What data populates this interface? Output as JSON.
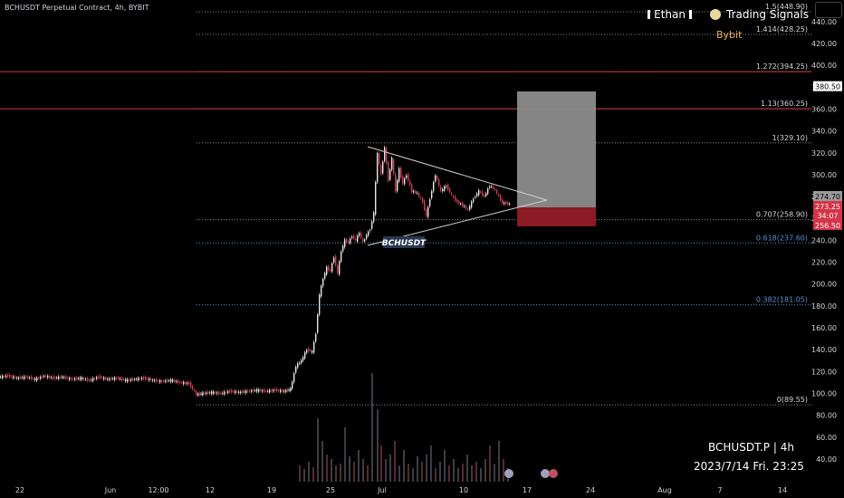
{
  "header": {
    "title": "BCHUSDT Perpetual Contract, 4h, BYBIT"
  },
  "branding": {
    "name": "Ethan",
    "signals": "Trading Signals",
    "exchange": "Bybit"
  },
  "footer": {
    "symbol": "BCHUSDT.P | 4h",
    "datetime": "2023/7/14 Fri. 23:25"
  },
  "pattern_label": "BCHUSDT",
  "colors": {
    "background": "#000000",
    "fib": "#8a8a8a",
    "fib_blue": "#5b8fd8",
    "ext_red": "#d23b3b",
    "target_box": "#8c8c8c",
    "stop_box": "#8b1a24",
    "price_tag": "#d63447"
  },
  "chart_data": {
    "type": "candlestick",
    "yticks": [
      40,
      60,
      80,
      100,
      120,
      140,
      160,
      180,
      200,
      220,
      240,
      260,
      280,
      300,
      320,
      340,
      360,
      380,
      400,
      420,
      440
    ],
    "ytick_labels": [
      "40.00",
      "60.00",
      "80.00",
      "100.00",
      "120.00",
      "140.00",
      "160.00",
      "180.00",
      "200.00",
      "220.00",
      "240.00",
      "260.00",
      "280.00",
      "300.00",
      "320.00",
      "340.00",
      "360.00",
      "380.00",
      "400.00",
      "420.00",
      "440.00"
    ],
    "xtick_labels": [
      "22",
      "Jun",
      "12:00",
      "12",
      "19",
      "25",
      "Jul",
      "10",
      "17",
      "24",
      "Aug",
      "7",
      "14"
    ],
    "fib_levels": [
      {
        "label": "0(89.55)",
        "value": 89.55
      },
      {
        "label": "0.382(181.05)",
        "value": 181.05
      },
      {
        "label": "0.618(237.60)",
        "value": 237.6
      },
      {
        "label": "0.707(258.90)",
        "value": 258.9
      },
      {
        "label": "1(329.10)",
        "value": 329.1
      },
      {
        "label": "1.13(360.25)",
        "value": 360.25
      },
      {
        "label": "1.272(394.25)",
        "value": 394.25
      },
      {
        "label": "1.414(428.25)",
        "value": 428.25
      },
      {
        "label": "1.5(448.90)",
        "value": 448.9
      }
    ],
    "price_tags": [
      {
        "label": "380.50",
        "value": 380.5
      },
      {
        "label": "274.70",
        "value": 274.7
      },
      {
        "label": "273.25",
        "value": 273.25
      },
      {
        "label": "34:07"
      },
      {
        "label": "256.50",
        "value": 256.5
      }
    ],
    "ohlc_path": [
      [
        0,
        115
      ],
      [
        10,
        116
      ],
      [
        20,
        114
      ],
      [
        30,
        115
      ],
      [
        40,
        113
      ],
      [
        50,
        116
      ],
      [
        60,
        114
      ],
      [
        70,
        115
      ],
      [
        80,
        113
      ],
      [
        90,
        114
      ],
      [
        100,
        112
      ],
      [
        110,
        115
      ],
      [
        120,
        113
      ],
      [
        130,
        114
      ],
      [
        140,
        112
      ],
      [
        150,
        113
      ],
      [
        160,
        114
      ],
      [
        170,
        112
      ],
      [
        180,
        111
      ],
      [
        190,
        112
      ],
      [
        200,
        110
      ],
      [
        210,
        109
      ],
      [
        218,
        99
      ],
      [
        225,
        100
      ],
      [
        235,
        101
      ],
      [
        245,
        100
      ],
      [
        255,
        102
      ],
      [
        265,
        101
      ],
      [
        275,
        102
      ],
      [
        285,
        103
      ],
      [
        295,
        102
      ],
      [
        305,
        103
      ],
      [
        315,
        102
      ],
      [
        322,
        104
      ],
      [
        328,
        125
      ],
      [
        334,
        130
      ],
      [
        340,
        140
      ],
      [
        346,
        138
      ],
      [
        350,
        155
      ],
      [
        354,
        190
      ],
      [
        358,
        205
      ],
      [
        362,
        215
      ],
      [
        366,
        212
      ],
      [
        370,
        225
      ],
      [
        374,
        210
      ],
      [
        378,
        230
      ],
      [
        382,
        240
      ],
      [
        386,
        238
      ],
      [
        390,
        244
      ],
      [
        394,
        240
      ],
      [
        398,
        247
      ],
      [
        402,
        238
      ],
      [
        406,
        245
      ],
      [
        410,
        250
      ],
      [
        414,
        265
      ],
      [
        418,
        320
      ],
      [
        422,
        300
      ],
      [
        426,
        325
      ],
      [
        430,
        295
      ],
      [
        434,
        315
      ],
      [
        438,
        285
      ],
      [
        442,
        305
      ],
      [
        446,
        292
      ],
      [
        450,
        300
      ],
      [
        456,
        285
      ],
      [
        462,
        283
      ],
      [
        468,
        275
      ],
      [
        472,
        262
      ],
      [
        476,
        278
      ],
      [
        482,
        300
      ],
      [
        488,
        285
      ],
      [
        494,
        290
      ],
      [
        500,
        281
      ],
      [
        506,
        275
      ],
      [
        512,
        272
      ],
      [
        518,
        268
      ],
      [
        524,
        278
      ],
      [
        530,
        285
      ],
      [
        536,
        280
      ],
      [
        542,
        290
      ],
      [
        548,
        286
      ],
      [
        552,
        280
      ],
      [
        556,
        274
      ],
      [
        560,
        274
      ],
      [
        564,
        273
      ]
    ],
    "volume_x": [
      330,
      335,
      340,
      345,
      350,
      355,
      360,
      365,
      370,
      375,
      380,
      385,
      390,
      395,
      400,
      405,
      410,
      416,
      420,
      425,
      430,
      435,
      440,
      445,
      450,
      455,
      460,
      465,
      470,
      475,
      480,
      485,
      490,
      495,
      500,
      505,
      510,
      515,
      520,
      525,
      530,
      535,
      540,
      545,
      550,
      555,
      560
    ],
    "volume_h": [
      18,
      14,
      22,
      16,
      70,
      45,
      30,
      25,
      18,
      20,
      60,
      28,
      22,
      35,
      25,
      18,
      120,
      80,
      40,
      25,
      30,
      45,
      18,
      35,
      20,
      15,
      28,
      22,
      30,
      40,
      15,
      22,
      35,
      18,
      25,
      15,
      20,
      30,
      18,
      22,
      15,
      25,
      40,
      20,
      45,
      25,
      15
    ]
  }
}
